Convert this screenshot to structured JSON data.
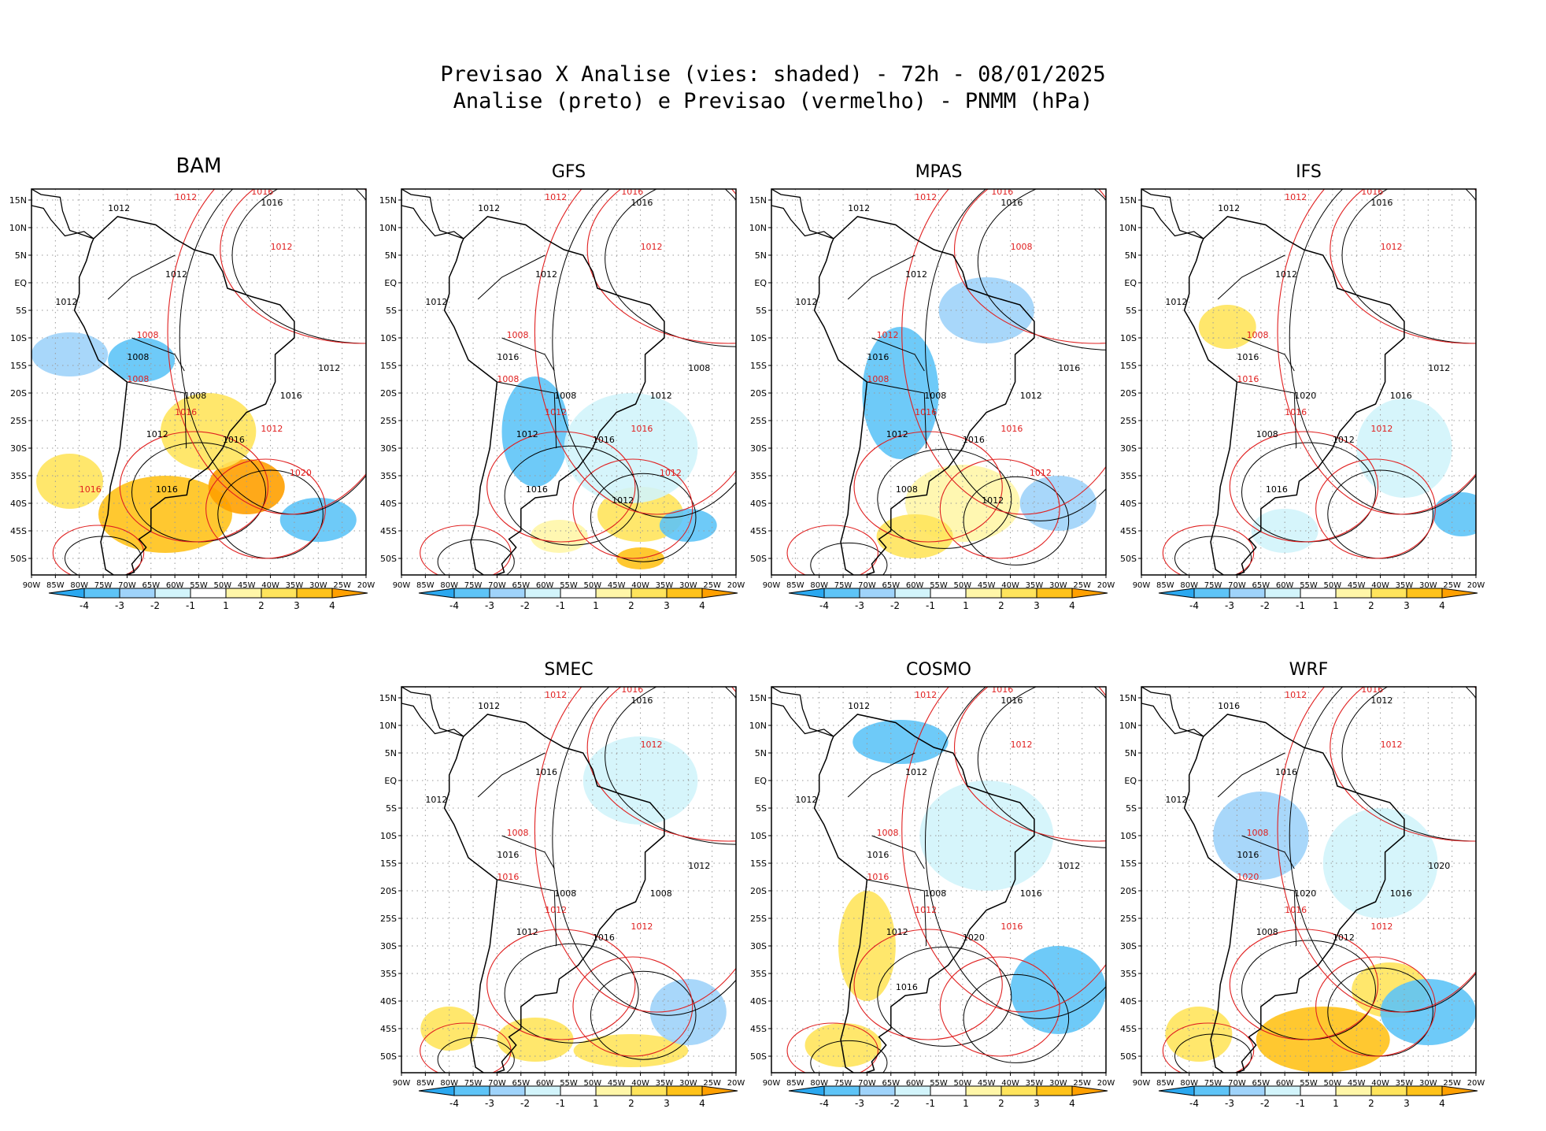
{
  "header": {
    "title_line1": "Previsao X Analise (vies: shaded) - 72h - 08/01/2025",
    "title_line2": "Analise (preto) e Previsao (vermelho) - PNMM (hPa)"
  },
  "axes": {
    "lat_labels": [
      "15N",
      "10N",
      "5N",
      "EQ",
      "5S",
      "10S",
      "15S",
      "20S",
      "25S",
      "30S",
      "35S",
      "40S",
      "45S",
      "50S"
    ],
    "lon_labels": [
      "90W",
      "85W",
      "80W",
      "75W",
      "70W",
      "65W",
      "60W",
      "55W",
      "50W",
      "45W",
      "40W",
      "35W",
      "30W",
      "25W",
      "20W"
    ]
  },
  "colorbar": {
    "labels": [
      "-4",
      "-3",
      "-2",
      "-1",
      "1",
      "2",
      "3",
      "4"
    ],
    "colors": [
      "#2aa8f0",
      "#5ec4f7",
      "#9fd3fa",
      "#d2f4fb",
      "#ffffff",
      "#fff6a8",
      "#ffe45c",
      "#ffc21a",
      "#ffa000"
    ]
  },
  "colors": {
    "analysis": "#000000",
    "forecast": "#e02020",
    "grid": "#9a9a9a"
  },
  "panels": [
    {
      "name": "BAM",
      "labels_black": [
        "1012",
        "1016",
        "1012",
        "1012",
        "1008",
        "1008",
        "1012",
        "1016",
        "1016",
        "1012",
        "1016"
      ],
      "labels_red": [
        "1012",
        "1016",
        "1012",
        "1008",
        "1008",
        "1016",
        "1012",
        "1020",
        "1016"
      ]
    },
    {
      "name": "GFS",
      "labels_black": [
        "1012",
        "1016",
        "1012",
        "1012",
        "1016",
        "1008",
        "1012",
        "1016",
        "1012",
        "1008",
        "1016",
        "1012"
      ],
      "labels_red": [
        "1012",
        "1016",
        "1012",
        "1008",
        "1008",
        "1012",
        "1016",
        "1012"
      ]
    },
    {
      "name": "MPAS",
      "labels_black": [
        "1012",
        "1016",
        "1012",
        "1012",
        "1016",
        "1008",
        "1012",
        "1016",
        "1012",
        "1016",
        "1008",
        "1012"
      ],
      "labels_red": [
        "1012",
        "1016",
        "1008",
        "1012",
        "1008",
        "1016",
        "1016",
        "1012"
      ]
    },
    {
      "name": "IFS",
      "labels_black": [
        "1012",
        "1016",
        "1012",
        "1012",
        "1016",
        "1020",
        "1008",
        "1012",
        "1016",
        "1012",
        "1016"
      ],
      "labels_red": [
        "1012",
        "1016",
        "1012",
        "1008",
        "1016",
        "1016",
        "1012"
      ]
    },
    {
      "name": "SMEC",
      "labels_black": [
        "1012",
        "1016",
        "1016",
        "1012",
        "1016",
        "1008",
        "1012",
        "1016",
        "1008",
        "1012"
      ],
      "labels_red": [
        "1012",
        "1016",
        "1012",
        "1008",
        "1016",
        "1012",
        "1012"
      ]
    },
    {
      "name": "COSMO",
      "labels_black": [
        "1012",
        "1016",
        "1012",
        "1012",
        "1016",
        "1008",
        "1012",
        "1020",
        "1016",
        "1012",
        "1016"
      ],
      "labels_red": [
        "1012",
        "1016",
        "1012",
        "1008",
        "1016",
        "1012",
        "1016"
      ]
    },
    {
      "name": "WRF",
      "labels_black": [
        "1016",
        "1012",
        "1016",
        "1012",
        "1016",
        "1020",
        "1008",
        "1012",
        "1016",
        "1020"
      ],
      "labels_red": [
        "1012",
        "1016",
        "1012",
        "1008",
        "1020",
        "1016",
        "1012"
      ]
    }
  ]
}
